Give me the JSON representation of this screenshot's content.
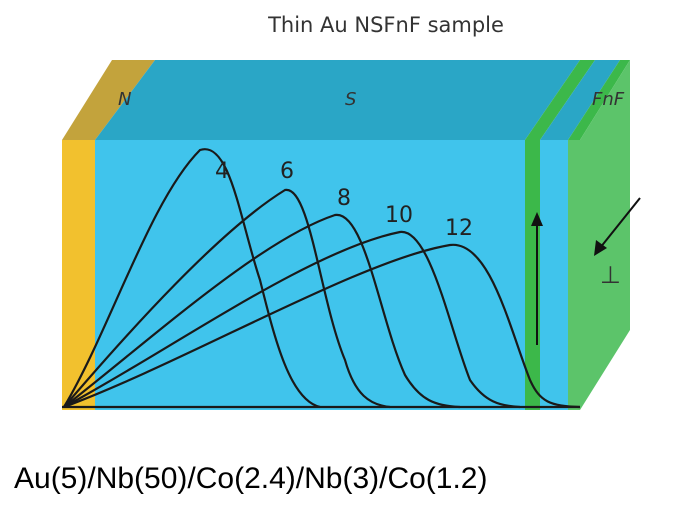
{
  "title": "Thin Au NSFnF sample",
  "layers": {
    "n": "N",
    "s": "S",
    "fnf": "FnF"
  },
  "curves": [
    {
      "label": "4"
    },
    {
      "label": "6"
    },
    {
      "label": "8"
    },
    {
      "label": "10"
    },
    {
      "label": "12"
    }
  ],
  "perpendicular": "⊥",
  "caption": "Au(5)/Nb(50)/Co(2.4)/Nb(3)/Co(1.2)"
}
